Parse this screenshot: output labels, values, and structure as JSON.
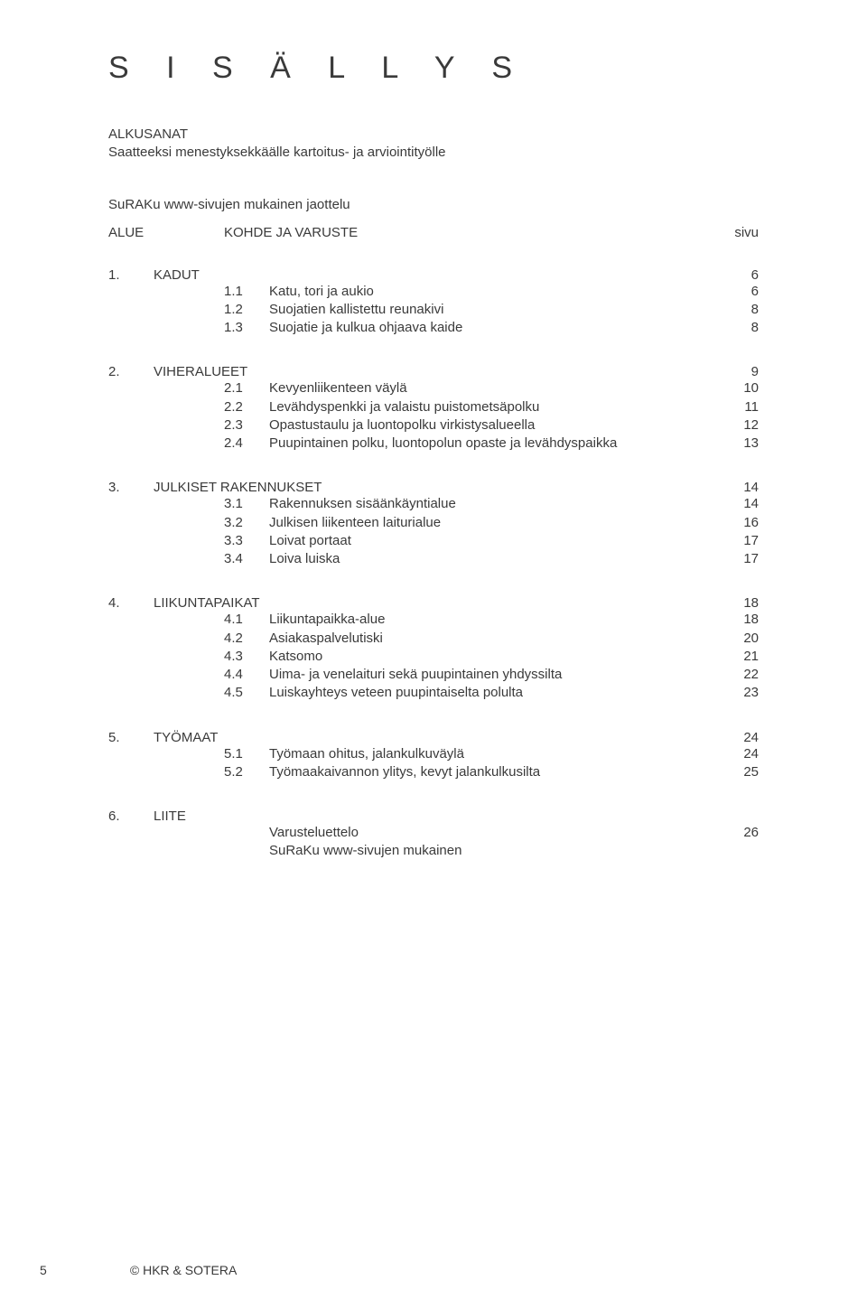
{
  "title": "S I S Ä L L Y S",
  "intro_line1": "ALKUSANAT",
  "intro_line2": "Saatteeksi menestyksekkäälle kartoitus- ja arviointityölle",
  "subintro": "SuRAKu www-sivujen mukainen jaottelu",
  "header": {
    "alue": "ALUE",
    "kohde": "KOHDE  JA  VARUSTE",
    "sivu": "sivu"
  },
  "sections": [
    {
      "num": "1.",
      "label": "KADUT",
      "page": "6",
      "items": [
        {
          "num": "1.1",
          "label": "Katu, tori ja aukio",
          "page": "6"
        },
        {
          "num": "1.2",
          "label": "Suojatien kallistettu reunakivi",
          "page": "8"
        },
        {
          "num": "1.3",
          "label": "Suojatie ja kulkua ohjaava kaide",
          "page": "8"
        }
      ]
    },
    {
      "num": "2.",
      "label": "VIHERALUEET",
      "page": "9",
      "items": [
        {
          "num": "2.1",
          "label": "Kevyenliikenteen väylä",
          "page": "10"
        },
        {
          "num": "2.2",
          "label": "Levähdyspenkki ja valaistu puistometsäpolku",
          "page": "11"
        },
        {
          "num": "2.3",
          "label": "Opastustaulu ja luontopolku virkistysalueella",
          "page": "12"
        },
        {
          "num": "2.4",
          "label": "Puupintainen polku, luontopolun opaste ja levähdyspaikka",
          "page": "13"
        }
      ]
    },
    {
      "num": "3.",
      "label": "JULKISET RAKENNUKSET",
      "page": "14",
      "items": [
        {
          "num": "3.1",
          "label": "Rakennuksen sisäänkäyntialue",
          "page": "14"
        },
        {
          "num": "3.2",
          "label": "Julkisen liikenteen laiturialue",
          "page": "16"
        },
        {
          "num": "3.3",
          "label": "Loivat portaat",
          "page": "17"
        },
        {
          "num": "3.4",
          "label": "Loiva luiska",
          "page": "17"
        }
      ]
    },
    {
      "num": "4.",
      "label": "LIIKUNTAPAIKAT",
      "page": "18",
      "items": [
        {
          "num": "4.1",
          "label": "Liikuntapaikka-alue",
          "page": "18"
        },
        {
          "num": "4.2",
          "label": "Asiakaspalvelutiski",
          "page": "20"
        },
        {
          "num": "4.3",
          "label": "Katsomo",
          "page": "21"
        },
        {
          "num": "4.4",
          "label": "Uima- ja venelaituri sekä puupintainen yhdyssilta",
          "page": "22"
        },
        {
          "num": "4.5",
          "label": "Luiskayhteys veteen puupintaiselta polulta",
          "page": "23"
        }
      ]
    },
    {
      "num": "5.",
      "label": "TYÖMAAT",
      "page": "24",
      "items": [
        {
          "num": "5.1",
          "label": "Työmaan ohitus, jalankulkuväylä",
          "page": "24"
        },
        {
          "num": "5.2",
          "label": "Työmaakaivannon ylitys, kevyt jalankulkusilta",
          "page": "25"
        }
      ]
    },
    {
      "num": "6.",
      "label": "LIITE",
      "page": "",
      "items": [
        {
          "num": "",
          "label": "Varusteluettelo",
          "page": "26"
        },
        {
          "num": "",
          "label": "SuRaKu www-sivujen mukainen",
          "page": ""
        }
      ]
    }
  ],
  "footer": {
    "pagenum": "5",
    "credit": "© HKR & SOTERA"
  }
}
